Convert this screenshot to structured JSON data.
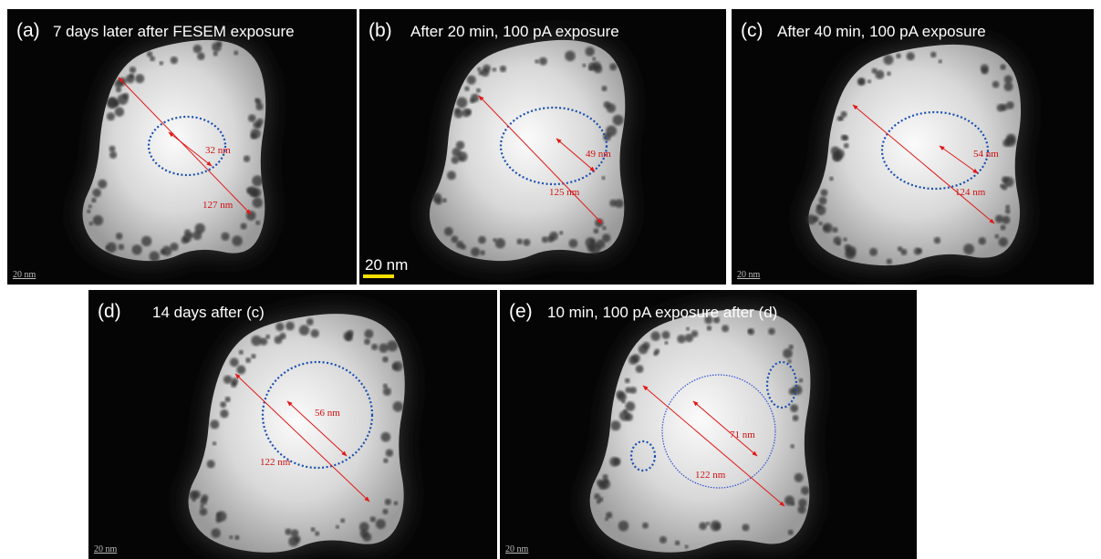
{
  "panels": [
    {
      "label": "(a)",
      "caption": "7 days later after FESEM exposure",
      "measurements": [
        "32 nm",
        "127 nm"
      ],
      "scale_bar": "20 nm"
    },
    {
      "label": "(b)",
      "caption": "After 20 min, 100 pA exposure",
      "measurements": [
        "49 nm",
        "125 nm"
      ],
      "scale_bar": "20 nm"
    },
    {
      "label": "(c)",
      "caption": "After 40 min, 100 pA exposure",
      "measurements": [
        "54 nm",
        "124 nm"
      ],
      "scale_bar": "20 nm"
    },
    {
      "label": "(d)",
      "caption": "14 days after (c)",
      "measurements": [
        "56 nm",
        "122 nm"
      ],
      "scale_bar": "20 nm"
    },
    {
      "label": "(e)",
      "caption": "10 min, 100 pA exposure after (d)",
      "measurements": [
        "71 nm",
        "122 nm"
      ],
      "scale_bar": "20 nm"
    }
  ]
}
